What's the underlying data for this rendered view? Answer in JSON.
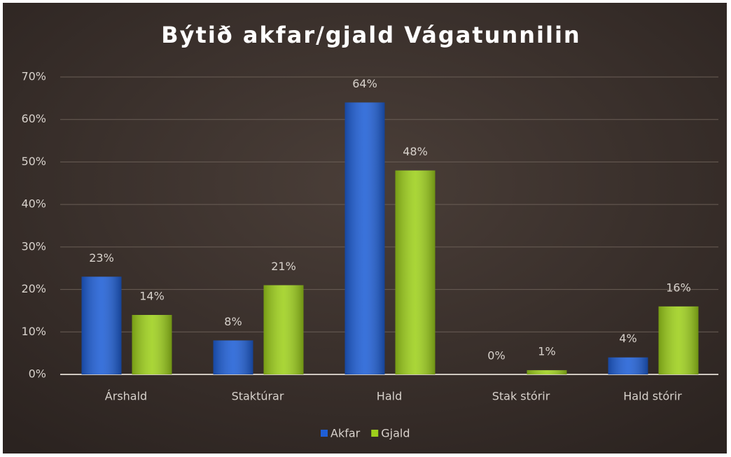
{
  "chart_data": {
    "type": "bar",
    "title": "Býtið akfar/gjald Vágatunnilin",
    "categories": [
      "Árshald",
      "Staktúrar",
      "Hald",
      "Stak stórir",
      "Hald stórir"
    ],
    "series": [
      {
        "name": "Akfar",
        "color": "#1f5fd6",
        "values": [
          23,
          8,
          64,
          0,
          4
        ],
        "value_labels": [
          "23%",
          "8%",
          "64%",
          "0%",
          "4%"
        ]
      },
      {
        "name": "Gjald",
        "color": "#9ed01c",
        "values": [
          14,
          21,
          48,
          1,
          16
        ],
        "value_labels": [
          "14%",
          "21%",
          "48%",
          "1%",
          "16%"
        ]
      }
    ],
    "ylim": [
      0,
      70
    ],
    "yticks": [
      {
        "value": 0,
        "label": "0%"
      },
      {
        "value": 10,
        "label": "10%"
      },
      {
        "value": 20,
        "label": "20%"
      },
      {
        "value": 30,
        "label": "30%"
      },
      {
        "value": 40,
        "label": "40%"
      },
      {
        "value": 50,
        "label": "50%"
      },
      {
        "value": 60,
        "label": "60%"
      },
      {
        "value": 70,
        "label": "70%"
      }
    ],
    "grid": true,
    "legend": "bottom"
  }
}
